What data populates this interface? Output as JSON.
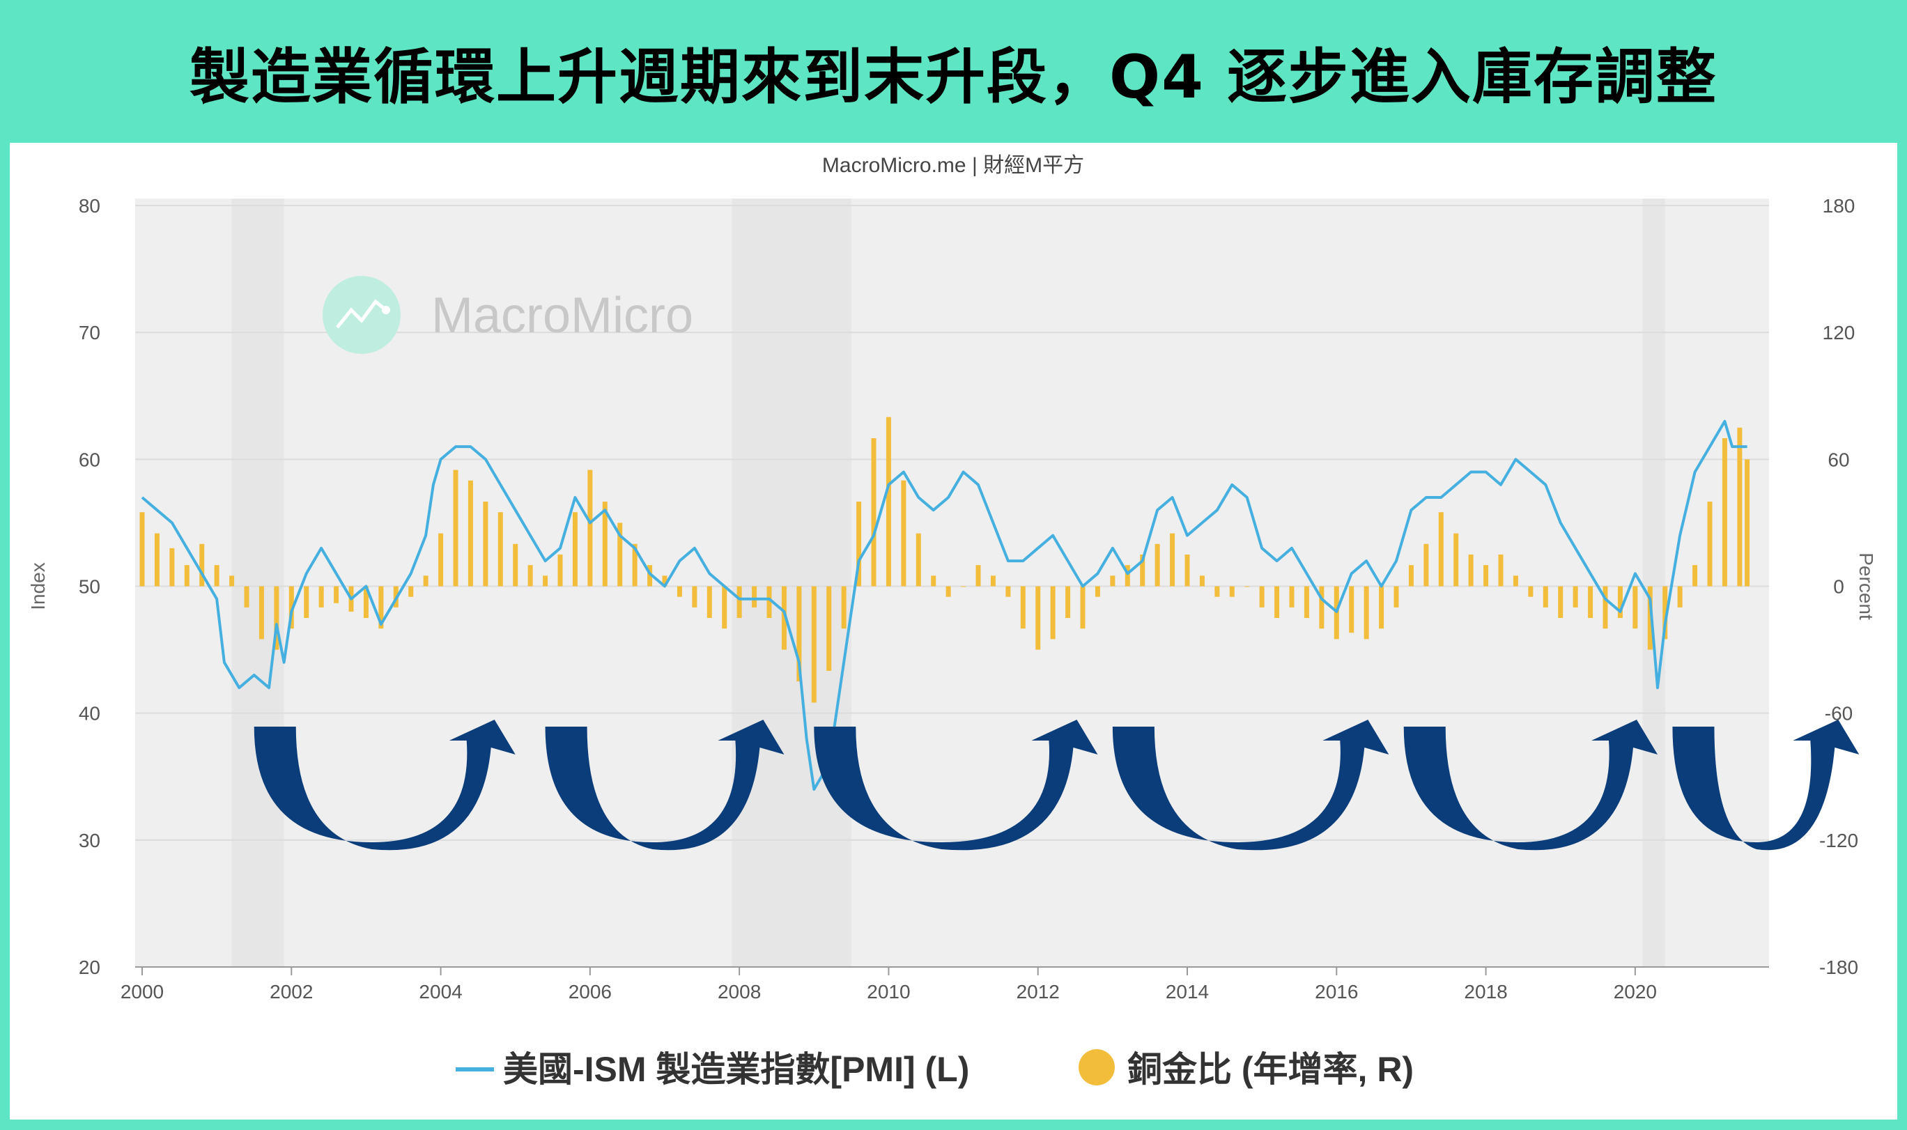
{
  "headline": "製造業循環上升週期來到末升段，Q4 逐步進入庫存調整",
  "credit": "MacroMicro.me | 財經M平方",
  "watermark": "MacroMicro",
  "colors": {
    "pmi": "#45b0e0",
    "copper_gold": "#f3bd3c",
    "arrow": "#0b3d7a",
    "recession": "#e6e6e6",
    "plot_bg": "#efefef",
    "frame": "#5ee6c4"
  },
  "chart_data": {
    "type": "line+bar",
    "left_axis": {
      "title": "Index",
      "ylim": [
        20,
        80
      ],
      "ticks": [
        "20",
        "30",
        "40",
        "50",
        "60",
        "70",
        "80"
      ]
    },
    "right_axis": {
      "title": "Percent",
      "ylim": [
        -180,
        180
      ],
      "ticks": [
        "-180",
        "-120",
        "-60",
        "0",
        "60",
        "120",
        "180"
      ]
    },
    "x_axis": {
      "xlim": [
        2000,
        2021.7
      ],
      "ticks": [
        "2000",
        "2002",
        "2004",
        "2006",
        "2008",
        "2010",
        "2012",
        "2014",
        "2016",
        "2018",
        "2020"
      ]
    },
    "recessions": [
      [
        2001.2,
        2001.9
      ],
      [
        2007.9,
        2009.5
      ],
      [
        2020.1,
        2020.4
      ]
    ],
    "series": [
      {
        "name": "美國-ISM 製造業指數[PMI] (L)",
        "type": "line",
        "axis": "left",
        "points": [
          [
            2000.0,
            57
          ],
          [
            2000.2,
            56
          ],
          [
            2000.4,
            55
          ],
          [
            2000.6,
            53
          ],
          [
            2000.8,
            51
          ],
          [
            2001.0,
            49
          ],
          [
            2001.1,
            44
          ],
          [
            2001.3,
            42
          ],
          [
            2001.5,
            43
          ],
          [
            2001.7,
            42
          ],
          [
            2001.8,
            47
          ],
          [
            2001.9,
            44
          ],
          [
            2002.0,
            48
          ],
          [
            2002.2,
            51
          ],
          [
            2002.4,
            53
          ],
          [
            2002.6,
            51
          ],
          [
            2002.8,
            49
          ],
          [
            2003.0,
            50
          ],
          [
            2003.2,
            47
          ],
          [
            2003.4,
            49
          ],
          [
            2003.6,
            51
          ],
          [
            2003.8,
            54
          ],
          [
            2003.9,
            58
          ],
          [
            2004.0,
            60
          ],
          [
            2004.2,
            61
          ],
          [
            2004.4,
            61
          ],
          [
            2004.6,
            60
          ],
          [
            2004.8,
            58
          ],
          [
            2005.0,
            56
          ],
          [
            2005.2,
            54
          ],
          [
            2005.4,
            52
          ],
          [
            2005.6,
            53
          ],
          [
            2005.8,
            57
          ],
          [
            2006.0,
            55
          ],
          [
            2006.2,
            56
          ],
          [
            2006.4,
            54
          ],
          [
            2006.6,
            53
          ],
          [
            2006.8,
            51
          ],
          [
            2007.0,
            50
          ],
          [
            2007.2,
            52
          ],
          [
            2007.4,
            53
          ],
          [
            2007.6,
            51
          ],
          [
            2007.8,
            50
          ],
          [
            2008.0,
            49
          ],
          [
            2008.2,
            49
          ],
          [
            2008.4,
            49
          ],
          [
            2008.6,
            48
          ],
          [
            2008.8,
            44
          ],
          [
            2008.9,
            38
          ],
          [
            2009.0,
            34
          ],
          [
            2009.2,
            36
          ],
          [
            2009.4,
            44
          ],
          [
            2009.6,
            52
          ],
          [
            2009.8,
            54
          ],
          [
            2010.0,
            58
          ],
          [
            2010.2,
            59
          ],
          [
            2010.4,
            57
          ],
          [
            2010.6,
            56
          ],
          [
            2010.8,
            57
          ],
          [
            2011.0,
            59
          ],
          [
            2011.2,
            58
          ],
          [
            2011.4,
            55
          ],
          [
            2011.6,
            52
          ],
          [
            2011.8,
            52
          ],
          [
            2012.0,
            53
          ],
          [
            2012.2,
            54
          ],
          [
            2012.4,
            52
          ],
          [
            2012.6,
            50
          ],
          [
            2012.8,
            51
          ],
          [
            2013.0,
            53
          ],
          [
            2013.2,
            51
          ],
          [
            2013.4,
            52
          ],
          [
            2013.6,
            56
          ],
          [
            2013.8,
            57
          ],
          [
            2014.0,
            54
          ],
          [
            2014.2,
            55
          ],
          [
            2014.4,
            56
          ],
          [
            2014.6,
            58
          ],
          [
            2014.8,
            57
          ],
          [
            2015.0,
            53
          ],
          [
            2015.2,
            52
          ],
          [
            2015.4,
            53
          ],
          [
            2015.6,
            51
          ],
          [
            2015.8,
            49
          ],
          [
            2016.0,
            48
          ],
          [
            2016.2,
            51
          ],
          [
            2016.4,
            52
          ],
          [
            2016.6,
            50
          ],
          [
            2016.8,
            52
          ],
          [
            2017.0,
            56
          ],
          [
            2017.2,
            57
          ],
          [
            2017.4,
            57
          ],
          [
            2017.6,
            58
          ],
          [
            2017.8,
            59
          ],
          [
            2018.0,
            59
          ],
          [
            2018.2,
            58
          ],
          [
            2018.4,
            60
          ],
          [
            2018.6,
            59
          ],
          [
            2018.8,
            58
          ],
          [
            2019.0,
            55
          ],
          [
            2019.2,
            53
          ],
          [
            2019.4,
            51
          ],
          [
            2019.6,
            49
          ],
          [
            2019.8,
            48
          ],
          [
            2020.0,
            51
          ],
          [
            2020.2,
            49
          ],
          [
            2020.3,
            42
          ],
          [
            2020.4,
            47
          ],
          [
            2020.6,
            54
          ],
          [
            2020.8,
            59
          ],
          [
            2021.0,
            61
          ],
          [
            2021.2,
            63
          ],
          [
            2021.3,
            61
          ],
          [
            2021.5,
            61
          ]
        ]
      },
      {
        "name": "銅金比 (年增率, R)",
        "type": "bar",
        "axis": "right",
        "points": [
          [
            2000.0,
            35
          ],
          [
            2000.2,
            25
          ],
          [
            2000.4,
            18
          ],
          [
            2000.6,
            10
          ],
          [
            2000.8,
            20
          ],
          [
            2001.0,
            10
          ],
          [
            2001.2,
            5
          ],
          [
            2001.4,
            -10
          ],
          [
            2001.6,
            -25
          ],
          [
            2001.8,
            -30
          ],
          [
            2002.0,
            -20
          ],
          [
            2002.2,
            -15
          ],
          [
            2002.4,
            -10
          ],
          [
            2002.6,
            -8
          ],
          [
            2002.8,
            -12
          ],
          [
            2003.0,
            -15
          ],
          [
            2003.2,
            -20
          ],
          [
            2003.4,
            -10
          ],
          [
            2003.6,
            -5
          ],
          [
            2003.8,
            5
          ],
          [
            2004.0,
            25
          ],
          [
            2004.2,
            55
          ],
          [
            2004.4,
            50
          ],
          [
            2004.6,
            40
          ],
          [
            2004.8,
            35
          ],
          [
            2005.0,
            20
          ],
          [
            2005.2,
            10
          ],
          [
            2005.4,
            5
          ],
          [
            2005.6,
            15
          ],
          [
            2005.8,
            35
          ],
          [
            2006.0,
            55
          ],
          [
            2006.2,
            40
          ],
          [
            2006.4,
            30
          ],
          [
            2006.6,
            20
          ],
          [
            2006.8,
            10
          ],
          [
            2007.0,
            5
          ],
          [
            2007.2,
            -5
          ],
          [
            2007.4,
            -10
          ],
          [
            2007.6,
            -15
          ],
          [
            2007.8,
            -20
          ],
          [
            2008.0,
            -15
          ],
          [
            2008.2,
            -10
          ],
          [
            2008.4,
            -15
          ],
          [
            2008.6,
            -30
          ],
          [
            2008.8,
            -45
          ],
          [
            2009.0,
            -55
          ],
          [
            2009.2,
            -40
          ],
          [
            2009.4,
            -20
          ],
          [
            2009.6,
            40
          ],
          [
            2009.8,
            70
          ],
          [
            2010.0,
            80
          ],
          [
            2010.2,
            50
          ],
          [
            2010.4,
            25
          ],
          [
            2010.6,
            5
          ],
          [
            2010.8,
            -5
          ],
          [
            2011.0,
            0
          ],
          [
            2011.2,
            10
          ],
          [
            2011.4,
            5
          ],
          [
            2011.6,
            -5
          ],
          [
            2011.8,
            -20
          ],
          [
            2012.0,
            -30
          ],
          [
            2012.2,
            -25
          ],
          [
            2012.4,
            -15
          ],
          [
            2012.6,
            -20
          ],
          [
            2012.8,
            -5
          ],
          [
            2013.0,
            5
          ],
          [
            2013.2,
            10
          ],
          [
            2013.4,
            15
          ],
          [
            2013.6,
            20
          ],
          [
            2013.8,
            25
          ],
          [
            2014.0,
            15
          ],
          [
            2014.2,
            5
          ],
          [
            2014.4,
            -5
          ],
          [
            2014.6,
            -5
          ],
          [
            2014.8,
            0
          ],
          [
            2015.0,
            -10
          ],
          [
            2015.2,
            -15
          ],
          [
            2015.4,
            -10
          ],
          [
            2015.6,
            -15
          ],
          [
            2015.8,
            -20
          ],
          [
            2016.0,
            -25
          ],
          [
            2016.2,
            -22
          ],
          [
            2016.4,
            -25
          ],
          [
            2016.6,
            -20
          ],
          [
            2016.8,
            -10
          ],
          [
            2017.0,
            10
          ],
          [
            2017.2,
            20
          ],
          [
            2017.4,
            35
          ],
          [
            2017.6,
            25
          ],
          [
            2017.8,
            15
          ],
          [
            2018.0,
            10
          ],
          [
            2018.2,
            15
          ],
          [
            2018.4,
            5
          ],
          [
            2018.6,
            -5
          ],
          [
            2018.8,
            -10
          ],
          [
            2019.0,
            -15
          ],
          [
            2019.2,
            -10
          ],
          [
            2019.4,
            -15
          ],
          [
            2019.6,
            -20
          ],
          [
            2019.8,
            -15
          ],
          [
            2020.0,
            -20
          ],
          [
            2020.2,
            -30
          ],
          [
            2020.4,
            -25
          ],
          [
            2020.6,
            -10
          ],
          [
            2020.8,
            10
          ],
          [
            2021.0,
            40
          ],
          [
            2021.2,
            70
          ],
          [
            2021.4,
            75
          ],
          [
            2021.5,
            60
          ]
        ]
      }
    ],
    "cycle_arrows": [
      [
        2001.5,
        2005.0
      ],
      [
        2005.4,
        2008.6
      ],
      [
        2009.0,
        2012.8
      ],
      [
        2013.0,
        2016.7
      ],
      [
        2016.9,
        2020.3
      ],
      [
        2020.5,
        2023.0
      ]
    ]
  }
}
